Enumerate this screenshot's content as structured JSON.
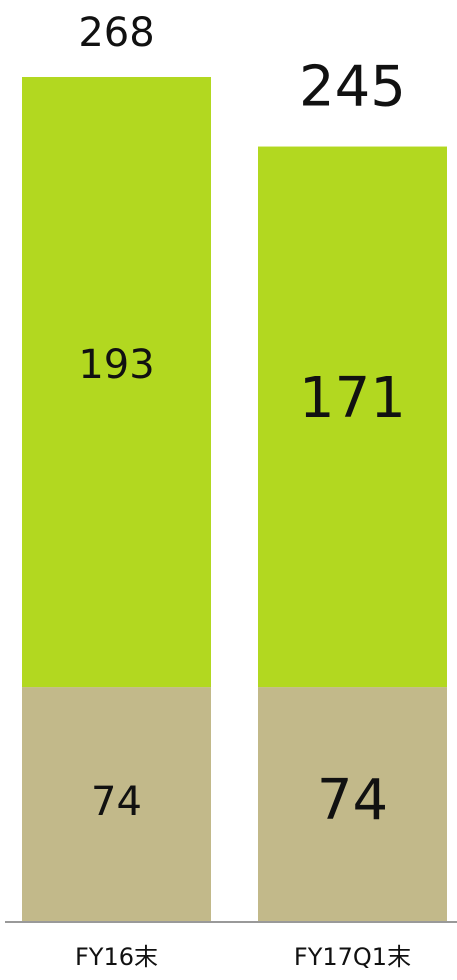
{
  "chart_data": {
    "type": "stacked-bar",
    "categories": [
      "FY16末",
      "FY17Q1末"
    ],
    "series": [
      {
        "color": "#c2b98a",
        "values": [
          74,
          74
        ]
      },
      {
        "color": "#b2d820",
        "values": [
          193,
          171
        ]
      }
    ],
    "totals": [
      268,
      245
    ]
  }
}
